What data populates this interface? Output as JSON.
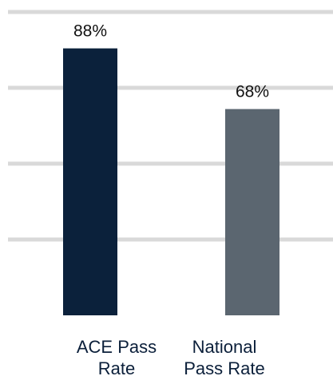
{
  "chart_data": {
    "type": "bar",
    "categories": [
      "ACE Pass Rate",
      "National Pass Rate"
    ],
    "category_lines": [
      [
        "ACE Pass",
        "Rate"
      ],
      [
        "National",
        "Pass Rate"
      ]
    ],
    "values": [
      88,
      68
    ],
    "value_labels": [
      "88%",
      "68%"
    ],
    "colors": [
      "#0b213b",
      "#5b6670"
    ],
    "gridline_color": "#d9d9d9",
    "ylim": [
      0,
      100
    ],
    "grid": true,
    "legend": "none",
    "title": "",
    "xlabel": "",
    "ylabel": ""
  }
}
